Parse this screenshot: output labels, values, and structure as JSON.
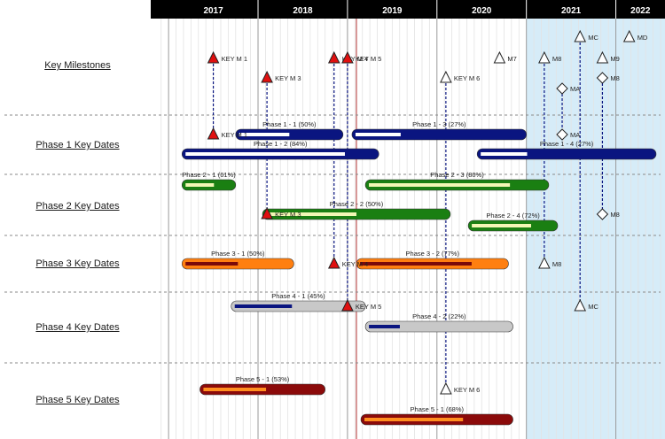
{
  "chart_data": {
    "type": "gantt",
    "time_axis": {
      "years": [
        "2017",
        "2018",
        "2019",
        "2020",
        "2021",
        "2022"
      ],
      "start": 2016.85,
      "end": 2022.5,
      "today": 2019.1,
      "future_start": 2021.0,
      "header_color": "#000000",
      "header_text_color": "#ffffff"
    },
    "rows": [
      {
        "id": "ms",
        "label": "Key Milestones"
      },
      {
        "id": "p1",
        "label": "Phase 1 Key Dates"
      },
      {
        "id": "p2",
        "label": "Phase 2 Key Dates"
      },
      {
        "id": "p3",
        "label": "Phase 3 Key Dates"
      },
      {
        "id": "p4",
        "label": "Phase 4 Key Dates"
      },
      {
        "id": "p5",
        "label": "Phase 5 Key Dates"
      }
    ],
    "tasks": [
      {
        "row": "p1",
        "lane": 0,
        "name": "Phase 1 - 1 (50%)",
        "start": 2017.75,
        "end": 2018.95,
        "progress": 0.5,
        "color": "#0a1580",
        "progress_color": "#ffffff"
      },
      {
        "row": "p1",
        "lane": 0,
        "name": "Phase 1 - 3 (27%)",
        "start": 2019.05,
        "end": 2021.0,
        "progress": 0.27,
        "color": "#0a1580",
        "progress_color": "#ffffff"
      },
      {
        "row": "p1",
        "lane": 1,
        "name": "Phase 1 - 2 (84%)",
        "start": 2017.15,
        "end": 2019.35,
        "progress": 0.84,
        "color": "#0a1580",
        "progress_color": "#ffffff"
      },
      {
        "row": "p1",
        "lane": 1,
        "name": "Phase 1 - 4 (27%)",
        "start": 2020.45,
        "end": 2022.45,
        "progress": 0.27,
        "color": "#0a1580",
        "progress_color": "#ffffff"
      },
      {
        "row": "p2",
        "lane": 0,
        "name": "Phase 2 - 1 (61%)",
        "start": 2017.15,
        "end": 2017.75,
        "progress": 0.61,
        "color": "#1a7f12",
        "progress_color": "#f3f7b5"
      },
      {
        "row": "p2",
        "lane": 0,
        "name": "Phase 2 - 3 (80%)",
        "start": 2019.2,
        "end": 2021.25,
        "progress": 0.8,
        "color": "#1a7f12",
        "progress_color": "#f3f7b5"
      },
      {
        "row": "p2",
        "lane": 1,
        "name": "Phase 2 - 2 (50%)",
        "start": 2018.05,
        "end": 2020.15,
        "progress": 0.5,
        "color": "#1a7f12",
        "progress_color": "#f3f7b5"
      },
      {
        "row": "p2",
        "lane": 2,
        "name": "Phase 2 - 4 (72%)",
        "start": 2020.35,
        "end": 2021.35,
        "progress": 0.72,
        "color": "#1a7f12",
        "progress_color": "#f3f7b5"
      },
      {
        "row": "p3",
        "lane": 0,
        "name": "Phase 3 - 1 (50%)",
        "start": 2017.15,
        "end": 2018.4,
        "progress": 0.5,
        "color": "#ff7f10",
        "progress_color": "#7a0a0a"
      },
      {
        "row": "p3",
        "lane": 0,
        "name": "Phase 3 - 2 (77%)",
        "start": 2019.1,
        "end": 2020.8,
        "progress": 0.77,
        "color": "#ff7f10",
        "progress_color": "#7a0a0a"
      },
      {
        "row": "p4",
        "lane": 0,
        "name": "Phase 4 - 1 (45%)",
        "start": 2017.7,
        "end": 2019.2,
        "progress": 0.45,
        "color": "#c8c8c8",
        "progress_color": "#0a1580"
      },
      {
        "row": "p4",
        "lane": 1,
        "name": "Phase 4 - 2 (22%)",
        "start": 2019.2,
        "end": 2020.85,
        "progress": 0.22,
        "color": "#c8c8c8",
        "progress_color": "#0a1580"
      },
      {
        "row": "p5",
        "lane": 0,
        "name": "Phase 5 - 1 (53%)",
        "start": 2017.35,
        "end": 2018.75,
        "progress": 0.53,
        "color": "#8b0a0a",
        "progress_color": "#ff8f20"
      },
      {
        "row": "p5",
        "lane": 1,
        "name": "Phase 5 - 1 (68%)",
        "start": 2019.15,
        "end": 2020.85,
        "progress": 0.68,
        "color": "#8b0a0a",
        "progress_color": "#ff8f20"
      }
    ],
    "milestones": [
      {
        "label": "KEY M 1",
        "shape": "triangle",
        "fill": "#e01010",
        "date": 2017.5,
        "row": "ms",
        "lane": 0,
        "stops": [
          {
            "row": "p1",
            "lane": 0
          }
        ]
      },
      {
        "label": "KEY M 3",
        "shape": "triangle",
        "fill": "#e01010",
        "date": 2018.1,
        "row": "ms",
        "lane": 1,
        "stops": [
          {
            "row": "p2",
            "lane": 1
          }
        ]
      },
      {
        "label": "KEY M 4",
        "shape": "triangle",
        "fill": "#e01010",
        "date": 2018.85,
        "row": "ms",
        "lane": 0,
        "stops": [
          {
            "row": "p3",
            "lane": 0
          }
        ]
      },
      {
        "label": "KEY M 5",
        "shape": "triangle",
        "fill": "#e01010",
        "date": 2019.0,
        "row": "ms",
        "lane": 0,
        "stops": [
          {
            "row": "p4",
            "lane": 0
          }
        ]
      },
      {
        "label": "KEY M 6",
        "shape": "triangle",
        "fill": "#ffffff",
        "date": 2020.1,
        "row": "ms",
        "lane": 1,
        "stops": [
          {
            "row": "p5",
            "lane": 0
          }
        ]
      },
      {
        "label": "M7",
        "shape": "triangle",
        "fill": "#ffffff",
        "date": 2020.7,
        "row": "ms",
        "lane": 0,
        "stops": []
      },
      {
        "label": "M8",
        "shape": "triangle",
        "fill": "#ffffff",
        "date": 2021.2,
        "row": "ms",
        "lane": 0,
        "stops": [
          {
            "row": "p3",
            "lane": 0
          }
        ]
      },
      {
        "label": "MC",
        "shape": "triangle",
        "fill": "#ffffff",
        "date": 2021.6,
        "row": "ms",
        "lane": -1,
        "stops": [
          {
            "row": "p4",
            "lane": 0
          }
        ]
      },
      {
        "label": "MD",
        "shape": "triangle",
        "fill": "#ffffff",
        "date": 2022.15,
        "row": "ms",
        "lane": -1,
        "stops": []
      },
      {
        "label": "M9",
        "shape": "triangle",
        "fill": "#ffffff",
        "date": 2021.85,
        "row": "ms",
        "lane": 0,
        "stops": []
      },
      {
        "label": "MA",
        "shape": "diamond",
        "fill": "#ffffff",
        "date": 2021.4,
        "row": "ms",
        "lane": 2,
        "stops": [
          {
            "row": "p1",
            "lane": 0
          }
        ]
      },
      {
        "label": "M8",
        "shape": "diamond",
        "fill": "#ffffff",
        "date": 2021.85,
        "row": "ms",
        "lane": 1,
        "stops": [
          {
            "row": "p2",
            "lane": 1
          }
        ]
      }
    ]
  }
}
